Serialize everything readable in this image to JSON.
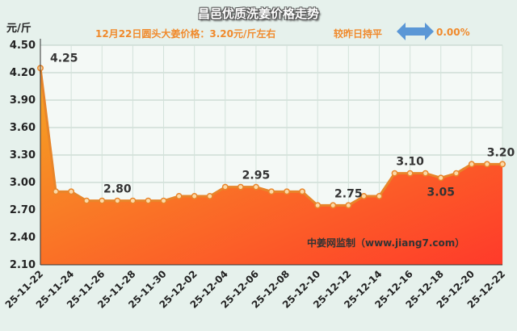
{
  "header": {
    "title": "昌邑优质洗姜价格走势",
    "subtitle_price": "12月22日圆头大姜价格：3.20元/斤左右",
    "subtitle_trend": "较昨日持平",
    "subtitle_change": "0.00%",
    "trend_icon": "double-arrow-icon"
  },
  "colors": {
    "accent": "#f08a2c",
    "arrow": "#5b97d6",
    "area_top": "#ff3a2a",
    "area_bottom": "#f5a623",
    "line": "#e8852a",
    "background": "#e6f1ec"
  },
  "chart_data": {
    "type": "area",
    "title": "昌邑优质洗姜价格走势",
    "ylabel": "元/斤",
    "xlabel": "",
    "ylim": [
      2.1,
      4.5
    ],
    "yticks": [
      "4.50",
      "4.20",
      "3.90",
      "3.60",
      "3.30",
      "3.00",
      "2.70",
      "2.40",
      "2.10"
    ],
    "xtick_labels": [
      "25-11-22",
      "25-11-24",
      "25-11-26",
      "25-11-28",
      "25-11-30",
      "25-12-02",
      "25-12-04",
      "25-12-06",
      "25-12-08",
      "25-12-10",
      "25-12-12",
      "25-12-14",
      "25-12-16",
      "25-12-18",
      "25-12-20",
      "25-12-22"
    ],
    "x": [
      "25-11-22",
      "25-11-23",
      "25-11-24",
      "25-11-25",
      "25-11-26",
      "25-11-27",
      "25-11-28",
      "25-11-29",
      "25-11-30",
      "25-12-01",
      "25-12-02",
      "25-12-03",
      "25-12-04",
      "25-12-05",
      "25-12-06",
      "25-12-07",
      "25-12-08",
      "25-12-09",
      "25-12-10",
      "25-12-11",
      "25-12-12",
      "25-12-13",
      "25-12-14",
      "25-12-15",
      "25-12-16",
      "25-12-17",
      "25-12-18",
      "25-12-19",
      "25-12-20",
      "25-12-21",
      "25-12-22"
    ],
    "values": [
      4.25,
      2.9,
      2.9,
      2.8,
      2.8,
      2.8,
      2.8,
      2.8,
      2.8,
      2.85,
      2.85,
      2.85,
      2.95,
      2.95,
      2.95,
      2.9,
      2.9,
      2.9,
      2.75,
      2.75,
      2.75,
      2.85,
      2.85,
      3.1,
      3.1,
      3.1,
      3.05,
      3.1,
      3.2,
      3.2,
      3.2
    ],
    "data_labels": [
      {
        "index": 0,
        "text": "4.25"
      },
      {
        "index": 5,
        "text": "2.80"
      },
      {
        "index": 14,
        "text": "2.95"
      },
      {
        "index": 20,
        "text": "2.75"
      },
      {
        "index": 24,
        "text": "3.10"
      },
      {
        "index": 26,
        "text": "3.05"
      },
      {
        "index": 30,
        "text": "3.20"
      }
    ],
    "watermark": "中姜网监制（www.jiang7.com）",
    "grid": true,
    "legend": "none"
  }
}
